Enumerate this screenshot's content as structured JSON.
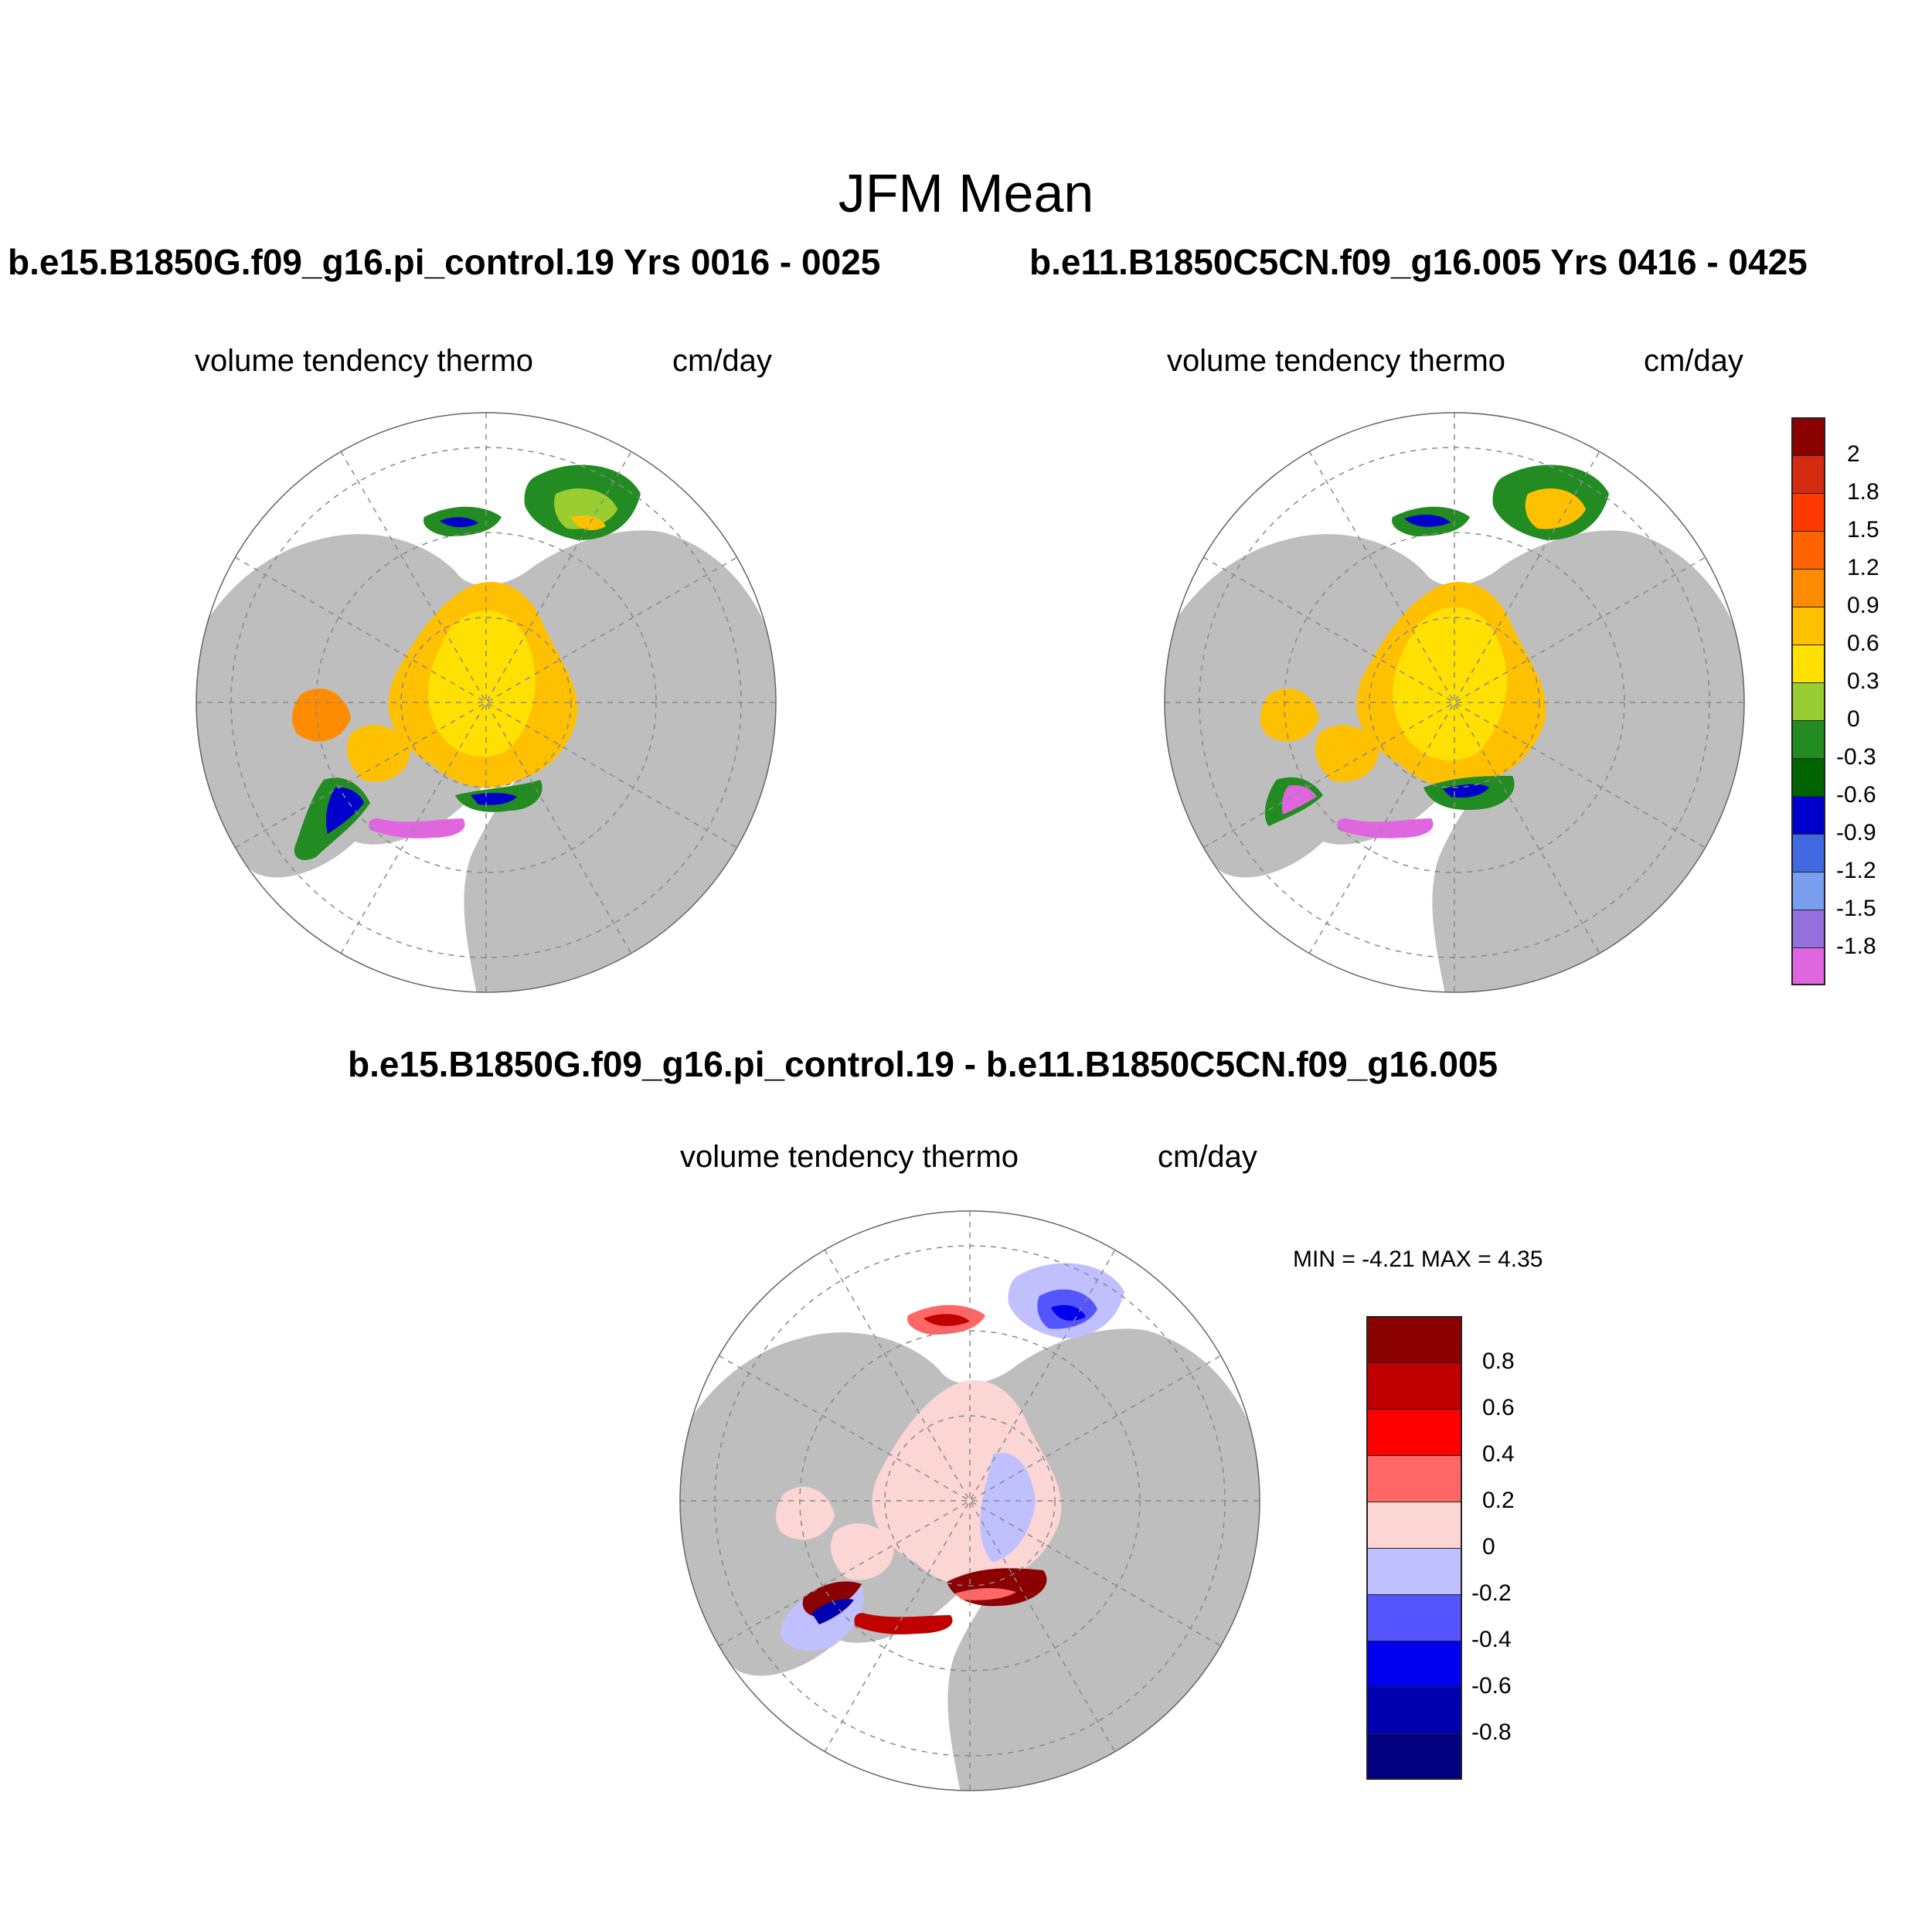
{
  "title": "JFM Mean",
  "panels": [
    {
      "id": "left",
      "run_title": "b.e15.B1850G.f09_g16.pi_control.19  Yrs 0016 - 0025",
      "variable": "volume tendency thermo",
      "units": "cm/day"
    },
    {
      "id": "right",
      "run_title": "b.e11.B1850C5CN.f09_g16.005  Yrs 0416 - 0425",
      "variable": "volume tendency thermo",
      "units": "cm/day"
    },
    {
      "id": "diff",
      "run_title": "b.e15.B1850G.f09_g16.pi_control.19 - b.e11.B1850C5CN.f09_g16.005",
      "variable": "volume tendency thermo",
      "units": "cm/day",
      "stats": "MIN =  -4.21 MAX =   4.35"
    }
  ],
  "colorbar_main": {
    "labels": [
      "2",
      "1.8",
      "1.5",
      "1.2",
      "0.9",
      "0.6",
      "0.3",
      "0",
      "-0.3",
      "-0.6",
      "-0.9",
      "-1.2",
      "-1.5",
      "-1.8"
    ],
    "colors": [
      "#8b0000",
      "#d42a10",
      "#ff3a00",
      "#ff6200",
      "#ff8c00",
      "#ffc000",
      "#ffe000",
      "#9acd32",
      "#228b22",
      "#006400",
      "#0000cd",
      "#4169e1",
      "#7b9ff0",
      "#9370db",
      "#e066e0"
    ]
  },
  "colorbar_diff": {
    "labels": [
      "0.8",
      "0.6",
      "0.4",
      "0.2",
      "0",
      "-0.2",
      "-0.4",
      "-0.6",
      "-0.8"
    ],
    "colors": [
      "#8b0000",
      "#c00000",
      "#ff0000",
      "#ff6666",
      "#fcd5d5",
      "#c0c0ff",
      "#5555ff",
      "#0000ee",
      "#0000b0",
      "#000080"
    ]
  },
  "colors": {
    "land": "#bebebe",
    "ocean": "#ffffff",
    "grid": "#8a8a8a"
  }
}
